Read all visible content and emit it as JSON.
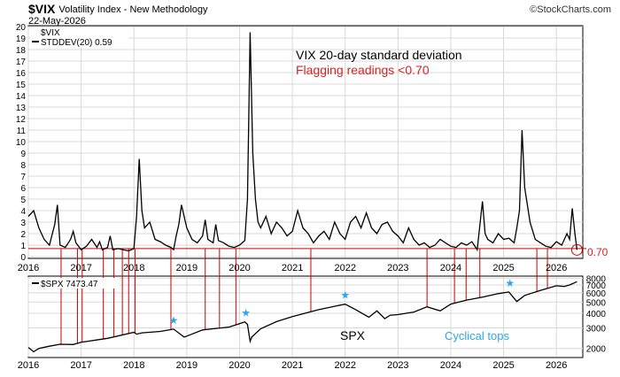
{
  "header": {
    "symbol": "$VIX",
    "name": "Volatility Index - New Methodology",
    "date": "22-May-2026",
    "watermark": "©StockCharts.com"
  },
  "chart_data": [
    {
      "type": "line",
      "panel": "top",
      "legend_symbol": "$VIX",
      "series_label": "STDDEV(20) 0.59",
      "annotation_title": "VIX 20-day standard deviation",
      "annotation_flag": "Flagging readings <0.70",
      "threshold_value": 0.7,
      "threshold_label": "0.70",
      "ylim": [
        0,
        20
      ],
      "yticks": [
        "0",
        "1",
        "2",
        "3",
        "4",
        "5",
        "6",
        "7",
        "8",
        "9",
        "10",
        "11",
        "12",
        "13",
        "14",
        "15",
        "16",
        "17",
        "18",
        "19",
        "20"
      ],
      "xticks": [
        "2016",
        "2017",
        "2018",
        "2019",
        "2020",
        "2021",
        "2022",
        "2023",
        "2024",
        "2025",
        "2026"
      ],
      "grid": true,
      "x": [
        2016.0,
        2016.1,
        2016.2,
        2016.3,
        2016.4,
        2016.5,
        2016.55,
        2016.6,
        2016.7,
        2016.8,
        2016.85,
        2016.9,
        2017.0,
        2017.1,
        2017.2,
        2017.3,
        2017.35,
        2017.4,
        2017.5,
        2017.55,
        2017.6,
        2017.7,
        2017.8,
        2017.9,
        2018.0,
        2018.05,
        2018.1,
        2018.15,
        2018.2,
        2018.3,
        2018.4,
        2018.5,
        2018.6,
        2018.7,
        2018.75,
        2018.8,
        2018.85,
        2018.9,
        2019.0,
        2019.1,
        2019.2,
        2019.3,
        2019.35,
        2019.4,
        2019.5,
        2019.55,
        2019.6,
        2019.7,
        2019.8,
        2019.9,
        2020.0,
        2020.1,
        2020.15,
        2020.2,
        2020.25,
        2020.3,
        2020.35,
        2020.4,
        2020.5,
        2020.6,
        2020.7,
        2020.8,
        2020.9,
        2021.0,
        2021.1,
        2021.2,
        2021.3,
        2021.4,
        2021.5,
        2021.6,
        2021.7,
        2021.8,
        2021.9,
        2022.0,
        2022.1,
        2022.2,
        2022.3,
        2022.4,
        2022.5,
        2022.6,
        2022.7,
        2022.8,
        2022.9,
        2023.0,
        2023.1,
        2023.2,
        2023.3,
        2023.4,
        2023.5,
        2023.6,
        2023.7,
        2023.8,
        2023.9,
        2024.0,
        2024.1,
        2024.2,
        2024.3,
        2024.4,
        2024.5,
        2024.6,
        2024.65,
        2024.7,
        2024.8,
        2024.9,
        2025.0,
        2025.1,
        2025.2,
        2025.25,
        2025.3,
        2025.35,
        2025.4,
        2025.5,
        2025.6,
        2025.7,
        2025.8,
        2025.9,
        2026.0,
        2026.1,
        2026.2,
        2026.25,
        2026.3,
        2026.35,
        2026.39
      ],
      "values": [
        3.5,
        4.0,
        2.5,
        1.5,
        1.0,
        2.8,
        4.5,
        1.0,
        0.8,
        1.5,
        2.2,
        1.2,
        0.6,
        0.9,
        1.5,
        0.8,
        1.3,
        0.6,
        0.8,
        1.8,
        0.6,
        0.7,
        0.6,
        0.5,
        0.7,
        3.5,
        8.5,
        4.0,
        2.5,
        3.0,
        1.5,
        1.3,
        1.0,
        0.8,
        0.6,
        1.8,
        2.8,
        4.5,
        2.5,
        1.5,
        1.2,
        1.8,
        3.2,
        1.5,
        1.2,
        2.8,
        1.4,
        1.2,
        0.9,
        0.8,
        1.0,
        1.4,
        5.0,
        19.5,
        9.0,
        5.0,
        3.0,
        2.5,
        3.5,
        2.0,
        3.0,
        2.5,
        1.8,
        2.2,
        4.0,
        2.5,
        2.0,
        1.2,
        1.8,
        2.2,
        1.5,
        3.0,
        2.0,
        1.5,
        3.0,
        3.5,
        2.5,
        3.8,
        2.5,
        2.0,
        2.8,
        3.0,
        2.2,
        1.8,
        1.2,
        2.5,
        1.5,
        1.0,
        1.2,
        0.8,
        1.0,
        1.5,
        1.2,
        0.9,
        0.8,
        1.2,
        1.0,
        1.3,
        0.6,
        4.8,
        2.0,
        1.5,
        1.2,
        2.0,
        1.5,
        1.6,
        1.2,
        2.5,
        4.0,
        11.0,
        6.0,
        3.0,
        1.5,
        1.2,
        0.9,
        0.8,
        1.3,
        1.0,
        2.0,
        1.5,
        4.2,
        2.0,
        0.59
      ],
      "flag_x": [
        2016.62,
        2016.93,
        2017.02,
        2017.42,
        2017.62,
        2017.78,
        2017.9,
        2018.02,
        2018.7,
        2019.35,
        2019.62,
        2019.93,
        2021.35,
        2023.55,
        2024.07,
        2024.29,
        2024.55,
        2025.63,
        2025.83
      ]
    },
    {
      "type": "line",
      "panel": "bottom",
      "series_label": "$SPX 7473.47",
      "annotation_name": "SPX",
      "annotation_tops": "Cyclical tops",
      "log_scale": true,
      "ylim": [
        1700,
        8200
      ],
      "yticks": [
        "2000",
        "3000",
        "4000",
        "5000",
        "6000",
        "7000",
        "8000"
      ],
      "xticks": [
        "2016",
        "2017",
        "2018",
        "2019",
        "2020",
        "2021",
        "2022",
        "2023",
        "2024",
        "2025",
        "2026"
      ],
      "grid": true,
      "x": [
        2016.0,
        2016.1,
        2016.2,
        2016.4,
        2016.6,
        2016.85,
        2017.0,
        2017.5,
        2018.0,
        2018.05,
        2018.15,
        2018.5,
        2018.75,
        2018.95,
        2019.0,
        2019.3,
        2019.5,
        2019.8,
        2020.1,
        2020.15,
        2020.2,
        2020.23,
        2020.4,
        2020.7,
        2021.0,
        2021.5,
        2021.8,
        2022.0,
        2022.2,
        2022.45,
        2022.6,
        2022.75,
        2022.85,
        2023.0,
        2023.3,
        2023.55,
        2023.8,
        2024.0,
        2024.3,
        2024.6,
        2024.9,
        2025.1,
        2025.25,
        2025.4,
        2025.7,
        2026.0,
        2026.15,
        2026.25,
        2026.39
      ],
      "values": [
        2040,
        1870,
        2000,
        2090,
        2170,
        2160,
        2260,
        2440,
        2750,
        2650,
        2720,
        2800,
        2930,
        2500,
        2550,
        2880,
        2950,
        3050,
        3380,
        3220,
        2300,
        2500,
        2950,
        3400,
        3750,
        4300,
        4600,
        4790,
        4300,
        3700,
        4200,
        3600,
        3850,
        3900,
        4100,
        4550,
        4200,
        4800,
        5200,
        5500,
        5900,
        6100,
        5050,
        5700,
        6300,
        6900,
        6800,
        7000,
        7473
      ]
    }
  ],
  "cyclical_tops": [
    {
      "x": 2018.75,
      "value": 2930
    },
    {
      "x": 2020.12,
      "value": 3380
    },
    {
      "x": 2022.0,
      "value": 4790
    },
    {
      "x": 2025.12,
      "value": 6100
    }
  ],
  "colors": {
    "price_line": "#000000",
    "flag_line": "#cc0000",
    "annotation_red": "#dd2020",
    "tops_star": "#2aa8e8",
    "grid": "#d8d8d8"
  }
}
